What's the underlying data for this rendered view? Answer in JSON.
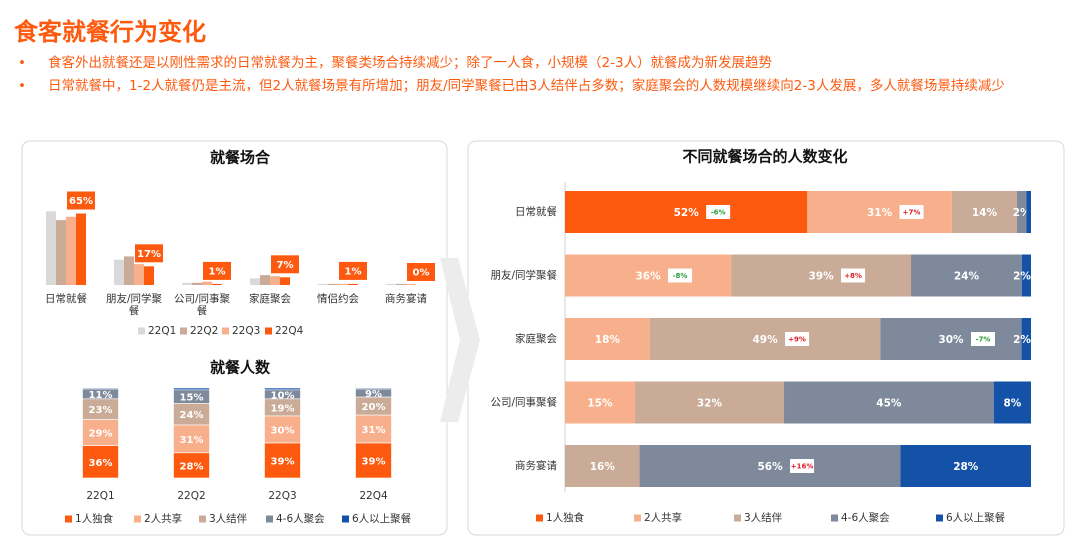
{
  "header": {
    "title": "食客就餐行为变化",
    "bullets": [
      "食客外出就餐还是以刚性需求的日常就餐为主，聚餐类场合持续减少；除了一人食，小规模（2-3人）就餐成为新发展趋势",
      "日常就餐中，1-2人就餐仍是主流，但2人就餐场景有所增加；朋友/同学聚餐已由3人结伴占多数；家庭聚会的人数规模继续向2-3人发展，多人就餐场景持续减少"
    ]
  },
  "chart_data": [
    {
      "type": "bar",
      "title": "就餐场合",
      "categories": [
        "日常就餐",
        "朋友/同学聚餐",
        "公司/同事聚餐",
        "家庭聚会",
        "情侣约会",
        "商务宴请"
      ],
      "series": [
        {
          "name": "22Q1",
          "color": "#d9d9d9",
          "values": [
            67,
            23,
            2,
            6,
            1,
            1
          ]
        },
        {
          "name": "22Q2",
          "color": "#c9ab98",
          "values": [
            59,
            26,
            2,
            9,
            1,
            1
          ]
        },
        {
          "name": "22Q3",
          "color": "#f8b08c",
          "values": [
            62,
            19,
            3,
            8,
            1,
            1
          ]
        },
        {
          "name": "22Q4",
          "color": "#fe5a0f",
          "values": [
            65,
            17,
            1,
            7,
            1,
            0
          ],
          "value_labels": [
            "65%",
            "17%",
            "1%",
            "7%",
            "1%",
            "0%"
          ]
        }
      ]
    },
    {
      "type": "bar",
      "title": "就餐人数",
      "stacked": true,
      "categories": [
        "22Q1",
        "22Q2",
        "22Q3",
        "22Q4"
      ],
      "series": [
        {
          "name": "1人独食",
          "color": "#fe5a0f",
          "values": [
            36,
            28,
            39,
            39
          ],
          "value_labels": [
            "36%",
            "28%",
            "39%",
            "39%"
          ]
        },
        {
          "name": "2人共享",
          "color": "#f8b08c",
          "values": [
            29,
            31,
            30,
            31
          ],
          "value_labels": [
            "29%",
            "31%",
            "30%",
            "31%"
          ]
        },
        {
          "name": "3人结伴",
          "color": "#c9ab98",
          "values": [
            23,
            24,
            19,
            20
          ],
          "value_labels": [
            "23%",
            "24%",
            "19%",
            "20%"
          ]
        },
        {
          "name": "4-6人聚会",
          "color": "#7e8a9c",
          "values": [
            11,
            15,
            10,
            9
          ],
          "value_labels": [
            "11%",
            "15%",
            "10%",
            "9%"
          ]
        },
        {
          "name": "6人以上聚餐",
          "color": "#1452a8",
          "values": [
            1,
            2,
            2,
            1
          ]
        }
      ]
    },
    {
      "type": "bar",
      "title": "不同就餐场合的人数变化",
      "stacked": true,
      "orientation": "horizontal",
      "categories": [
        "日常就餐",
        "朋友/同学聚餐",
        "家庭聚会",
        "公司/同事聚餐",
        "商务宴请"
      ],
      "series": [
        {
          "name": "1人独食",
          "color": "#fe5a0f",
          "values": [
            52,
            0,
            0,
            0,
            0
          ],
          "value_labels": [
            "52%",
            null,
            null,
            null,
            null
          ],
          "changes": [
            "-6%",
            null,
            null,
            null,
            null
          ]
        },
        {
          "name": "2人共享",
          "color": "#f8b08c",
          "values": [
            31,
            36,
            18,
            15,
            0
          ],
          "value_labels": [
            "31%",
            "36%",
            "18%",
            "15%",
            null
          ],
          "changes": [
            "+7%",
            "-8%",
            null,
            null,
            null
          ]
        },
        {
          "name": "3人结伴",
          "color": "#c9ab98",
          "values": [
            14,
            39,
            49,
            32,
            16
          ],
          "value_labels": [
            "14%",
            "39%",
            "49%",
            "32%",
            "16%"
          ],
          "changes": [
            null,
            "+8%",
            "+9%",
            null,
            null
          ]
        },
        {
          "name": "4-6人聚会",
          "color": "#7e8a9c",
          "values": [
            2,
            24,
            30,
            45,
            56
          ],
          "value_labels": [
            "2%",
            "24%",
            "30%",
            "45%",
            "56%"
          ],
          "changes": [
            null,
            null,
            "-7%",
            null,
            "+16%"
          ]
        },
        {
          "name": "6人以上聚餐",
          "color": "#1452a8",
          "values": [
            1,
            2,
            2,
            8,
            28
          ],
          "value_labels": [
            null,
            "2%",
            "2%",
            "8%",
            "28%"
          ]
        }
      ]
    }
  ]
}
